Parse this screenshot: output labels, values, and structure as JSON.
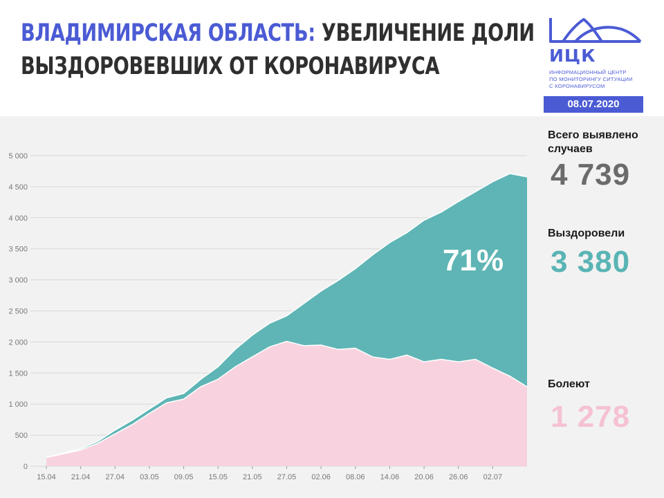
{
  "header": {
    "title_accent": "ВЛАДИМИРСКАЯ ОБЛАСТЬ:",
    "title_rest": " УВЕЛИЧЕНИЕ ДОЛИ",
    "title_line2": "ВЫЗДОРОВЕВШИХ ОТ КОРОНАВИРУСА",
    "logo_abbr": "ИЦК",
    "logo_subtitle_1": "ИНФОРМАЦИОННЫЙ ЦЕНТР",
    "logo_subtitle_2": "ПО МОНИТОРИНГУ СИТУАЦИИ",
    "logo_subtitle_3": "С КОРОНАВИРУСОМ",
    "date": "08.07.2020",
    "accent_color": "#4b5bd4"
  },
  "stats": {
    "total_label": "Всего выявлено случаев",
    "total_value": "4 739",
    "recovered_label": "Выздоровели",
    "recovered_value": "3 380",
    "sick_label": "Болеют",
    "sick_value": "1 278"
  },
  "chart_data": {
    "type": "area",
    "stacked": true,
    "annotation": "71%",
    "ylim": [
      0,
      5000
    ],
    "yticks": [
      0,
      500,
      1000,
      1500,
      2000,
      2500,
      3000,
      3500,
      4000,
      4500,
      5000
    ],
    "ytick_labels": [
      "0",
      "500",
      "1 000",
      "1 500",
      "2 000",
      "2 500",
      "3 000",
      "3 500",
      "4 000",
      "4 500",
      "5 000"
    ],
    "xtick_labels": [
      "15.04",
      "21.04",
      "27.04",
      "03.05",
      "09.05",
      "15.05",
      "21.05",
      "27.05",
      "02.06",
      "08.06",
      "14.06",
      "20.06",
      "26.06",
      "02.07"
    ],
    "x": [
      "15.04",
      "18.04",
      "21.04",
      "24.04",
      "27.04",
      "30.04",
      "03.05",
      "06.05",
      "09.05",
      "12.05",
      "15.05",
      "18.05",
      "21.05",
      "24.05",
      "27.05",
      "30.05",
      "02.06",
      "05.06",
      "08.06",
      "11.06",
      "14.06",
      "17.06",
      "20.06",
      "23.06",
      "26.06",
      "29.06",
      "02.07",
      "05.07",
      "08.07"
    ],
    "series": [
      {
        "color": "#f8d3df",
        "values": [
          140,
          200,
          260,
          370,
          520,
          670,
          850,
          1020,
          1080,
          1280,
          1400,
          1600,
          1760,
          1920,
          2010,
          1940,
          1950,
          1880,
          1900,
          1760,
          1720,
          1790,
          1680,
          1720,
          1680,
          1720,
          1580,
          1450,
          1278
        ]
      },
      {
        "color": "#5fb5b5",
        "values": [
          0,
          10,
          20,
          30,
          60,
          70,
          70,
          80,
          90,
          120,
          200,
          280,
          350,
          380,
          410,
          680,
          870,
          1110,
          1280,
          1640,
          1880,
          1970,
          2280,
          2370,
          2580,
          2700,
          3000,
          3260,
          3380
        ]
      }
    ],
    "colors": {
      "grid": "#d7d7d7",
      "tick_text": "#777777",
      "sick": "#f8d3df",
      "recovered": "#5fb5b5",
      "line": "#ffffff"
    }
  }
}
